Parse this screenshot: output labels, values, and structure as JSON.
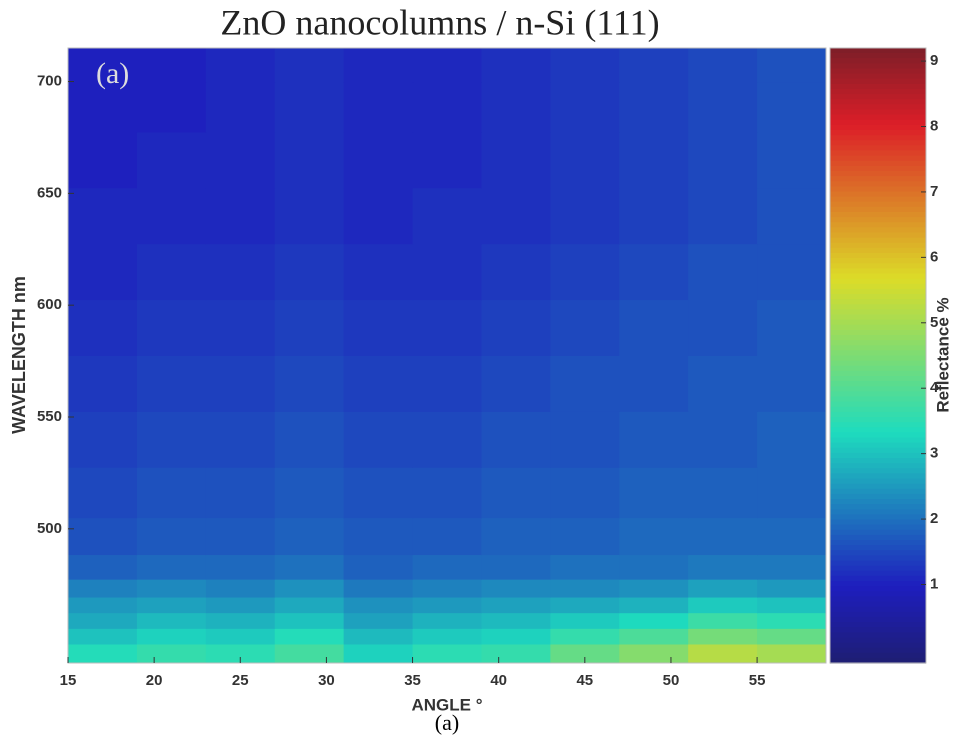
{
  "chart_data": {
    "type": "heatmap",
    "title": "ZnO nanocolumns / n-Si (111)",
    "annotation": "(a)",
    "caption": "(a)",
    "xlabel": "ANGLE °",
    "ylabel": "WAVELENGTH nm",
    "colorbar_label": "Reflectance %",
    "colormap": "jet",
    "xlim": [
      15,
      59
    ],
    "xticks": [
      15,
      20,
      25,
      30,
      35,
      40,
      45,
      50,
      55
    ],
    "ylim": [
      440,
      715
    ],
    "yticks": [
      500,
      550,
      600,
      650,
      700
    ],
    "clim": [
      -0.2,
      9.2
    ],
    "cticks": [
      1,
      2,
      3,
      4,
      5,
      6,
      7,
      8,
      9
    ],
    "x": [
      17,
      21,
      25,
      29,
      33,
      37,
      41,
      45,
      49,
      53,
      57
    ],
    "y": [
      445,
      452,
      459,
      466,
      473,
      482,
      495,
      515,
      540,
      565,
      590,
      615,
      640,
      665,
      690,
      710
    ],
    "z": [
      [
        3.4,
        3.6,
        3.5,
        3.8,
        3.2,
        3.5,
        3.6,
        4.2,
        4.6,
        5.2,
        5.0
      ],
      [
        3.0,
        3.2,
        3.1,
        3.4,
        2.9,
        3.1,
        3.2,
        3.6,
        3.9,
        4.4,
        4.2
      ],
      [
        2.7,
        2.9,
        2.8,
        3.0,
        2.6,
        2.8,
        2.9,
        3.1,
        3.3,
        3.7,
        3.5
      ],
      [
        2.5,
        2.6,
        2.5,
        2.7,
        2.4,
        2.5,
        2.6,
        2.7,
        2.8,
        3.1,
        3.0
      ],
      [
        2.2,
        2.3,
        2.2,
        2.4,
        2.1,
        2.2,
        2.3,
        2.3,
        2.4,
        2.6,
        2.5
      ],
      [
        1.8,
        1.9,
        1.9,
        2.0,
        1.8,
        1.9,
        1.9,
        2.0,
        2.0,
        2.1,
        2.1
      ],
      [
        1.6,
        1.7,
        1.7,
        1.8,
        1.7,
        1.7,
        1.8,
        1.8,
        1.9,
        1.9,
        1.9
      ],
      [
        1.5,
        1.6,
        1.6,
        1.7,
        1.6,
        1.6,
        1.7,
        1.7,
        1.8,
        1.8,
        1.8
      ],
      [
        1.4,
        1.5,
        1.5,
        1.6,
        1.5,
        1.5,
        1.6,
        1.6,
        1.7,
        1.7,
        1.8
      ],
      [
        1.3,
        1.4,
        1.4,
        1.5,
        1.4,
        1.4,
        1.5,
        1.6,
        1.6,
        1.7,
        1.7
      ],
      [
        1.2,
        1.3,
        1.3,
        1.4,
        1.3,
        1.3,
        1.4,
        1.5,
        1.6,
        1.6,
        1.7
      ],
      [
        1.1,
        1.2,
        1.2,
        1.3,
        1.2,
        1.2,
        1.3,
        1.4,
        1.5,
        1.6,
        1.6
      ],
      [
        1.1,
        1.1,
        1.1,
        1.2,
        1.1,
        1.2,
        1.2,
        1.3,
        1.4,
        1.5,
        1.6
      ],
      [
        1.0,
        1.1,
        1.1,
        1.2,
        1.1,
        1.1,
        1.2,
        1.3,
        1.4,
        1.5,
        1.6
      ],
      [
        1.0,
        1.0,
        1.1,
        1.2,
        1.1,
        1.1,
        1.2,
        1.3,
        1.4,
        1.5,
        1.6
      ],
      [
        1.0,
        1.0,
        1.1,
        1.2,
        1.1,
        1.1,
        1.2,
        1.3,
        1.4,
        1.5,
        1.6
      ]
    ]
  }
}
